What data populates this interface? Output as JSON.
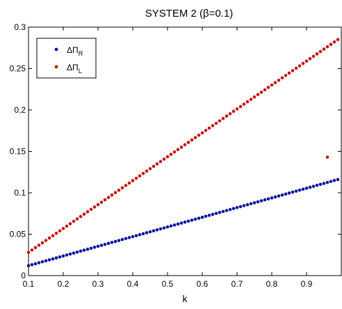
{
  "chart_data": {
    "type": "scatter",
    "title": "SYSTEM 2 (β=0.1)",
    "xlabel": "k",
    "ylabel": "",
    "xlim": [
      0.1,
      1.0
    ],
    "ylim": [
      0,
      0.3
    ],
    "xticks": [
      "0.1",
      "0.2",
      "0.3",
      "0.4",
      "0.5",
      "0.6",
      "0.7",
      "0.8",
      "0.9"
    ],
    "yticks": [
      "0",
      "0.05",
      "0.1",
      "0.15",
      "0.2",
      "0.25",
      "0.3"
    ],
    "grid": false,
    "legend_position": "top-left",
    "series": [
      {
        "name": "ΔΠ",
        "subscript": "R",
        "color": "#0a14a0",
        "x_range": [
          0.1,
          0.99
        ],
        "x_step": 0.01,
        "y_fn": "linear",
        "y_at_start": 0.012,
        "y_at_end": 0.116,
        "outliers": []
      },
      {
        "name": "ΔΠ",
        "subscript": "L",
        "color": "#c81414",
        "x_range": [
          0.1,
          0.99
        ],
        "x_step": 0.01,
        "y_fn": "linear",
        "y_at_start": 0.028,
        "y_at_end": 0.285,
        "outliers": [
          {
            "x": 0.96,
            "y": 0.143
          }
        ]
      }
    ]
  }
}
